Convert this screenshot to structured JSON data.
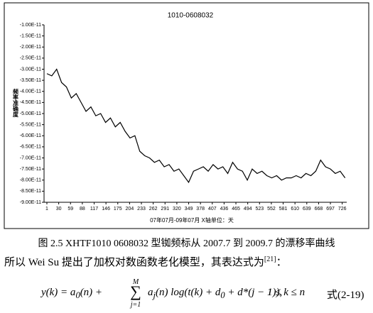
{
  "chart_data": {
    "type": "line",
    "title": "1010-0608032",
    "x_label": "07年07月-09年07月 X轴单位：天",
    "y_label": "频率准确度",
    "x": [
      1,
      13,
      25,
      37,
      49,
      61,
      73,
      85,
      97,
      109,
      121,
      133,
      145,
      157,
      169,
      181,
      193,
      205,
      217,
      229,
      241,
      253,
      265,
      277,
      289,
      301,
      313,
      325,
      337,
      349,
      361,
      373,
      385,
      397,
      409,
      421,
      433,
      445,
      457,
      469,
      481,
      493,
      505,
      517,
      529,
      541,
      553,
      565,
      577,
      589,
      601,
      613,
      625,
      637,
      649,
      661,
      673,
      685,
      697,
      709,
      721,
      733
    ],
    "series": [
      {
        "name": "1010-0608032",
        "color": "#000000",
        "values": [
          -3.2e-11,
          -3.3e-11,
          -3e-11,
          -3.6e-11,
          -3.8e-11,
          -4.3e-11,
          -4.1e-11,
          -4.5e-11,
          -4.9e-11,
          -4.7e-11,
          -5.1e-11,
          -5e-11,
          -5.4e-11,
          -5.2e-11,
          -5.6e-11,
          -5.4e-11,
          -5.8e-11,
          -6.1e-11,
          -6e-11,
          -6.7e-11,
          -6.9e-11,
          -7e-11,
          -7.2e-11,
          -7.1e-11,
          -7.4e-11,
          -7.3e-11,
          -7.6e-11,
          -7.5e-11,
          -7.8e-11,
          -8.1e-11,
          -7.6e-11,
          -7.5e-11,
          -7.4e-11,
          -7.6e-11,
          -7.3e-11,
          -7.5e-11,
          -7.4e-11,
          -7.7e-11,
          -7.2e-11,
          -7.5e-11,
          -7.6e-11,
          -8e-11,
          -7.5e-11,
          -7.7e-11,
          -7.6e-11,
          -7.8e-11,
          -7.9e-11,
          -7.8e-11,
          -8e-11,
          -7.9e-11,
          -7.9e-11,
          -7.8e-11,
          -7.9e-11,
          -7.7e-11,
          -7.8e-11,
          -7.6e-11,
          -7.1e-11,
          -7.4e-11,
          -7.5e-11,
          -7.7e-11,
          -7.6e-11,
          -7.9e-11
        ]
      }
    ],
    "xlim": [
      1,
      744
    ],
    "xticks": [
      1,
      30,
      59,
      88,
      117,
      146,
      175,
      204,
      233,
      262,
      291,
      320,
      349,
      378,
      407,
      436,
      465,
      494,
      523,
      552,
      581,
      610,
      639,
      668,
      697,
      726
    ],
    "ylim": [
      -9e-11,
      -1e-11
    ],
    "yticks": [
      {
        "value": -1e-11,
        "label": "-1.00E-11"
      },
      {
        "value": -1.5e-11,
        "label": "-1.50E-11"
      },
      {
        "value": -2e-11,
        "label": "-2.00E-11"
      },
      {
        "value": -2.5e-11,
        "label": "-2.50E-11"
      },
      {
        "value": -3e-11,
        "label": "-3.00E-11"
      },
      {
        "value": -3.5e-11,
        "label": "-3.50E-11"
      },
      {
        "value": -4e-11,
        "label": "-4.00E-11"
      },
      {
        "value": -4.5e-11,
        "label": "-4.50E-11"
      },
      {
        "value": -5e-11,
        "label": "-5.00E-11"
      },
      {
        "value": -5.5e-11,
        "label": "-5.50E-11"
      },
      {
        "value": -6e-11,
        "label": "-6.00E-11"
      },
      {
        "value": -6.5e-11,
        "label": "-6.50E-11"
      },
      {
        "value": -7e-11,
        "label": "-7.00E-11"
      },
      {
        "value": -7.5e-11,
        "label": "-7.50E-11"
      },
      {
        "value": -8e-11,
        "label": "-8.00E-11"
      },
      {
        "value": -8.5e-11,
        "label": "-8.50E-11"
      },
      {
        "value": -9e-11,
        "label": "-9.00E-11"
      }
    ],
    "grid": false
  },
  "caption": "图 2.5 XHTF1010 0608032 型铷频标从 2007.7 到 2009.7 的漂移率曲线",
  "paragraph": {
    "text": "所以 Wei Su 提出了加权对数函数老化模型，其表达式为",
    "citation": "[21]",
    "end": "："
  },
  "equation": {
    "a": "y(k) = a",
    "a_sub": "0",
    "b": "(n) + ",
    "sum_top": "M",
    "sum": "∑",
    "sum_bottom": "j=1",
    "c": "a",
    "c_sub": "j",
    "d": "(n) log(t(k) + d",
    "d_sub": "0",
    "e": " + d*(j − 1)),",
    "range": "1 ≤ k ≤ n",
    "number": "式(2-19)"
  }
}
